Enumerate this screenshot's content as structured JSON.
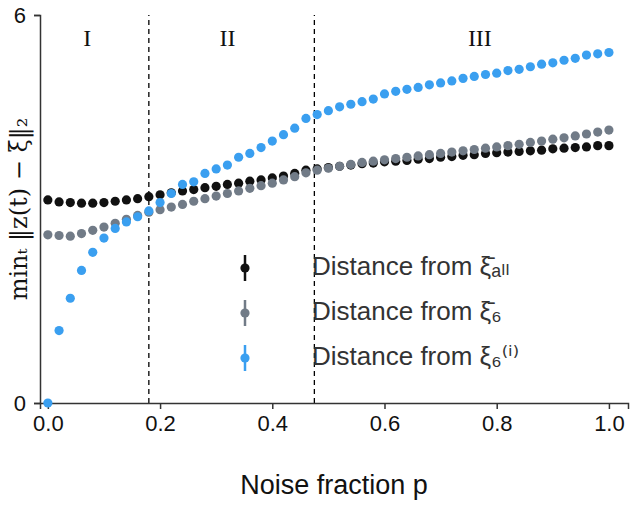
{
  "chart_data": {
    "type": "scatter",
    "x_label": "Noise fraction p",
    "y_label": "minₜ ‖z(t) − ξ‖₂",
    "xlim": [
      -0.014,
      1.034
    ],
    "ylim": [
      0,
      6
    ],
    "xticks": [
      {
        "value": 0,
        "label": "0.0"
      },
      {
        "value": 0.2,
        "label": "0.2"
      },
      {
        "value": 0.4,
        "label": "0.4"
      },
      {
        "value": 0.6,
        "label": "0.6"
      },
      {
        "value": 0.8,
        "label": "0.8"
      },
      {
        "value": 1,
        "label": "1.0"
      }
    ],
    "yticks": [
      0,
      6
    ],
    "grid": false,
    "legend": "lower right",
    "vlines": [
      0.18,
      0.475
    ],
    "annotations": [
      {
        "text": "I",
        "x": 0.07,
        "y": 5.6
      },
      {
        "text": "II",
        "x": 0.32,
        "y": 5.6
      },
      {
        "text": "III",
        "x": 0.77,
        "y": 5.6
      }
    ],
    "x": [
      0,
      0.02,
      0.04,
      0.06,
      0.08,
      0.1,
      0.12,
      0.14,
      0.16,
      0.18,
      0.2,
      0.22,
      0.24,
      0.26,
      0.28,
      0.3,
      0.32,
      0.34,
      0.36,
      0.38,
      0.4,
      0.42,
      0.44,
      0.46,
      0.48,
      0.5,
      0.52,
      0.54,
      0.56,
      0.58,
      0.6,
      0.62,
      0.64,
      0.66,
      0.68,
      0.7,
      0.72,
      0.74,
      0.76,
      0.78,
      0.8,
      0.82,
      0.84,
      0.86,
      0.88,
      0.9,
      0.92,
      0.94,
      0.96,
      0.98,
      1
    ],
    "series": [
      {
        "name": "Distance from ξ̄ₐₗₗ",
        "color": "#111111",
        "marker": "circle",
        "values": [
          3.14,
          3.11,
          3.1,
          3.09,
          3.09,
          3.1,
          3.12,
          3.14,
          3.16,
          3.19,
          3.22,
          3.25,
          3.28,
          3.3,
          3.33,
          3.35,
          3.38,
          3.4,
          3.43,
          3.45,
          3.48,
          3.51,
          3.55,
          3.6,
          3.62,
          3.64,
          3.66,
          3.68,
          3.7,
          3.71,
          3.73,
          3.74,
          3.75,
          3.77,
          3.78,
          3.8,
          3.81,
          3.83,
          3.84,
          3.86,
          3.87,
          3.88,
          3.89,
          3.9,
          3.91,
          3.93,
          3.94,
          3.95,
          3.96,
          3.98,
          3.98
        ]
      },
      {
        "name": "Distance from ξ̄₆",
        "color": "#717b87",
        "marker": "circle",
        "values": [
          2.6,
          2.59,
          2.58,
          2.62,
          2.67,
          2.72,
          2.78,
          2.84,
          2.9,
          2.95,
          2.99,
          3.03,
          3.07,
          3.12,
          3.16,
          3.2,
          3.24,
          3.28,
          3.32,
          3.36,
          3.4,
          3.45,
          3.5,
          3.56,
          3.6,
          3.63,
          3.66,
          3.69,
          3.72,
          3.74,
          3.76,
          3.78,
          3.8,
          3.82,
          3.84,
          3.86,
          3.88,
          3.9,
          3.92,
          3.94,
          3.96,
          3.98,
          4.0,
          4.03,
          4.05,
          4.08,
          4.1,
          4.13,
          4.16,
          4.19,
          4.22
        ]
      },
      {
        "name": "Distance from ξ₆⁽ⁱ⁾",
        "color": "#3a9ff0",
        "marker": "circle",
        "values": [
          0,
          1.12,
          1.62,
          2.05,
          2.33,
          2.55,
          2.7,
          2.8,
          2.88,
          2.97,
          3.1,
          3.24,
          3.38,
          3.42,
          3.55,
          3.62,
          3.68,
          3.8,
          3.86,
          3.95,
          4.05,
          4.15,
          4.25,
          4.4,
          4.46,
          4.52,
          4.58,
          4.62,
          4.66,
          4.7,
          4.78,
          4.82,
          4.85,
          4.88,
          4.92,
          4.95,
          4.98,
          5.02,
          5.05,
          5.08,
          5.1,
          5.14,
          5.16,
          5.2,
          5.24,
          5.26,
          5.3,
          5.33,
          5.38,
          5.4,
          5.42
        ]
      }
    ]
  }
}
